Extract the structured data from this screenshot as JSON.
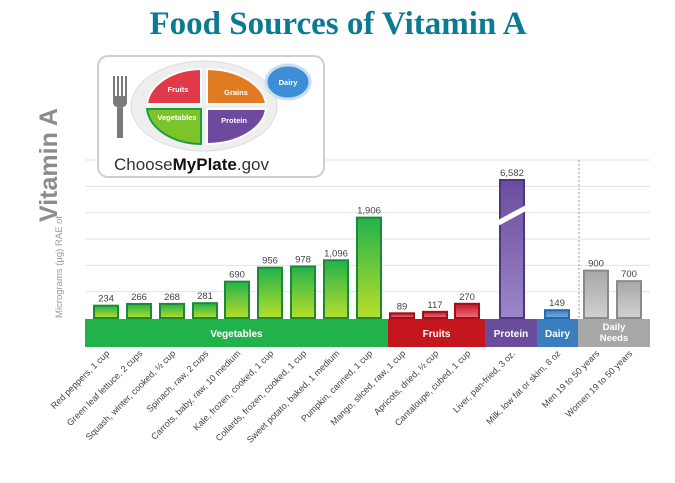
{
  "chart_data": {
    "type": "bar",
    "title": "Food Sources of Vitamin A",
    "ylabel_small": "Micrograms (µg) RAE of",
    "ylabel_large": "Vitamin A",
    "ylim": [
      0,
      3000
    ],
    "grid": true,
    "groups": [
      {
        "name": "Vegetables",
        "color": "#22b24c",
        "start": 0,
        "end": 8
      },
      {
        "name": "Fruits",
        "color": "#c4161c",
        "start": 9,
        "end": 11
      },
      {
        "name": "Protein",
        "color": "#6a4c9c",
        "start": 12,
        "end": 12
      },
      {
        "name": "Dairy",
        "color": "#3a7ebf",
        "start": 13,
        "end": 13
      },
      {
        "name": "Daily Needs",
        "color": "#a8a8a8",
        "start": 14,
        "end": 15
      }
    ],
    "categories": [
      "Red peppers, 1 cup",
      "Green leaf lettuce, 2 cups",
      "Squash, winter, cooked, ½ cup",
      "Spinach, raw, 2 cups",
      "Carrots, baby, raw, 10 medium",
      "Kale, frozen, cooked, 1 cup",
      "Collards, frozen, cooked, 1 cup",
      "Sweet potato, baked, 1 medium",
      "Pumpkin, canned, 1 cup",
      "Mango, sliced, raw, 1 cup",
      "Apricots, dried, ½ cup",
      "Cantaloupe, cubed, 1 cup",
      "Liver, pan-fried, 3 oz.",
      "Milk, low fat or skim, 8 oz",
      "Men 19 to 50 years",
      "Women 19 to 50 years"
    ],
    "values": [
      234,
      266,
      268,
      281,
      690,
      956,
      978,
      1096,
      1906,
      89,
      117,
      270,
      6582,
      149,
      900,
      700
    ],
    "value_labels": [
      "234",
      "266",
      "268",
      "281",
      "690",
      "956",
      "978",
      "1,096",
      "1,906",
      "89",
      "117",
      "270",
      "6,582",
      "149",
      "900",
      "700"
    ],
    "broken_axis_bar": "Liver, pan-fried, 3 oz."
  },
  "logo": {
    "text_light": "Choose",
    "text_bold": "MyPlate",
    "text_suffix": ".gov",
    "sections": [
      "Fruits",
      "Grains",
      "Vegetables",
      "Protein",
      "Dairy"
    ]
  }
}
